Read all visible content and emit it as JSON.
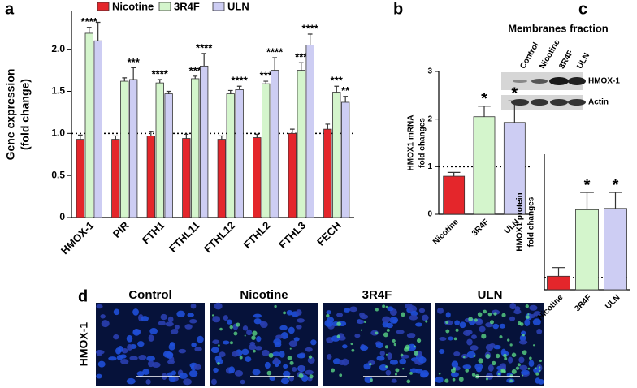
{
  "panel_letters": [
    "a",
    "b",
    "c",
    "d"
  ],
  "chart_data": [
    {
      "type": "bar",
      "categories": [
        "HMOX-1",
        "PIR",
        "FTH1",
        "FTHL11",
        "FTHL12",
        "FTHL2",
        "FTHL3",
        "FECH"
      ],
      "category_colors": [
        "#e4262b",
        "#000000",
        "#000000",
        "#000000",
        "#000000",
        "#000000",
        "#000000",
        "#000000"
      ],
      "series": [
        {
          "name": "Nicotine",
          "color": "#e4262b",
          "values": [
            0.93,
            0.93,
            0.97,
            0.94,
            0.93,
            0.95,
            1.0,
            1.05
          ],
          "errors": [
            0.05,
            0.04,
            0.05,
            0.05,
            0.04,
            0.04,
            0.05,
            0.06
          ],
          "annotations": [
            null,
            null,
            null,
            null,
            null,
            null,
            null,
            null
          ]
        },
        {
          "name": "3R4F",
          "color": "#d4f5cc",
          "values": [
            2.19,
            1.62,
            1.6,
            1.65,
            1.47,
            1.59,
            1.75,
            1.49
          ],
          "errors": [
            0.07,
            0.04,
            0.04,
            0.03,
            0.04,
            0.03,
            0.09,
            0.07
          ],
          "annotations": [
            "****",
            null,
            "****",
            "***",
            null,
            "***",
            "***",
            "***"
          ]
        },
        {
          "name": "ULN",
          "color": "#cdcdf3",
          "values": [
            2.1,
            1.64,
            1.47,
            1.8,
            1.52,
            1.75,
            2.05,
            1.37
          ],
          "errors": [
            0.22,
            0.14,
            0.03,
            0.15,
            0.04,
            0.15,
            0.13,
            0.07
          ],
          "annotations": [
            null,
            "***",
            null,
            "****",
            "****",
            "****",
            "****",
            "**"
          ]
        }
      ],
      "ylabel": [
        "Gene expression",
        "(fold change)"
      ],
      "ylim": [
        0,
        2.45
      ],
      "yticks": [
        0,
        0.5,
        {
          "value": 1,
          "label": "1.0"
        },
        1.5,
        {
          "value": 2,
          "label": "2.0"
        }
      ],
      "hline": 1
    },
    {
      "type": "bar",
      "categories": [
        "Nicotine",
        "3R4F",
        "ULN"
      ],
      "colors": [
        "#e4262b",
        "#d4f5cc",
        "#cdcdf3"
      ],
      "values": [
        0.8,
        2.05,
        1.93
      ],
      "errors": [
        0.08,
        0.22,
        0.45
      ],
      "annotations": [
        null,
        "*",
        "*"
      ],
      "ylabel": [
        "HMOX1 mRNA",
        "fold changes"
      ],
      "ylim": [
        0,
        3
      ],
      "yticks": [
        0,
        1,
        2,
        3
      ],
      "hline": 1
    },
    {
      "type": "bar",
      "categories": [
        "Nicotine",
        "3R4F",
        "ULN"
      ],
      "colors": [
        "#e4262b",
        "#d4f5cc",
        "#cdcdf3"
      ],
      "values": [
        1.1,
        6.5,
        6.6
      ],
      "errors": [
        0.7,
        1.4,
        1.3
      ],
      "annotations": [
        null,
        "*",
        "*"
      ],
      "ylabel": [
        "HMOX1 protein",
        "fold changes"
      ],
      "ylim": [
        0,
        11
      ],
      "hline": 1
    }
  ],
  "blot": {
    "title": "Membranes fraction",
    "lanes": [
      "Control",
      "Nicotine",
      "3R4F",
      "ULN"
    ],
    "lane_colors": [
      "#000000",
      "#d41f26",
      "#1f9a6e",
      "#1b2a8c"
    ],
    "bands": [
      "HMOX-1",
      "Actin"
    ]
  },
  "micrographs": {
    "row_label": "HMOX-1",
    "columns": [
      "Control",
      "Nicotine",
      "3R4F",
      "ULN"
    ],
    "column_colors": [
      "#000000",
      "#19a98a",
      "#e4262b",
      "#1b2a8c"
    ]
  }
}
